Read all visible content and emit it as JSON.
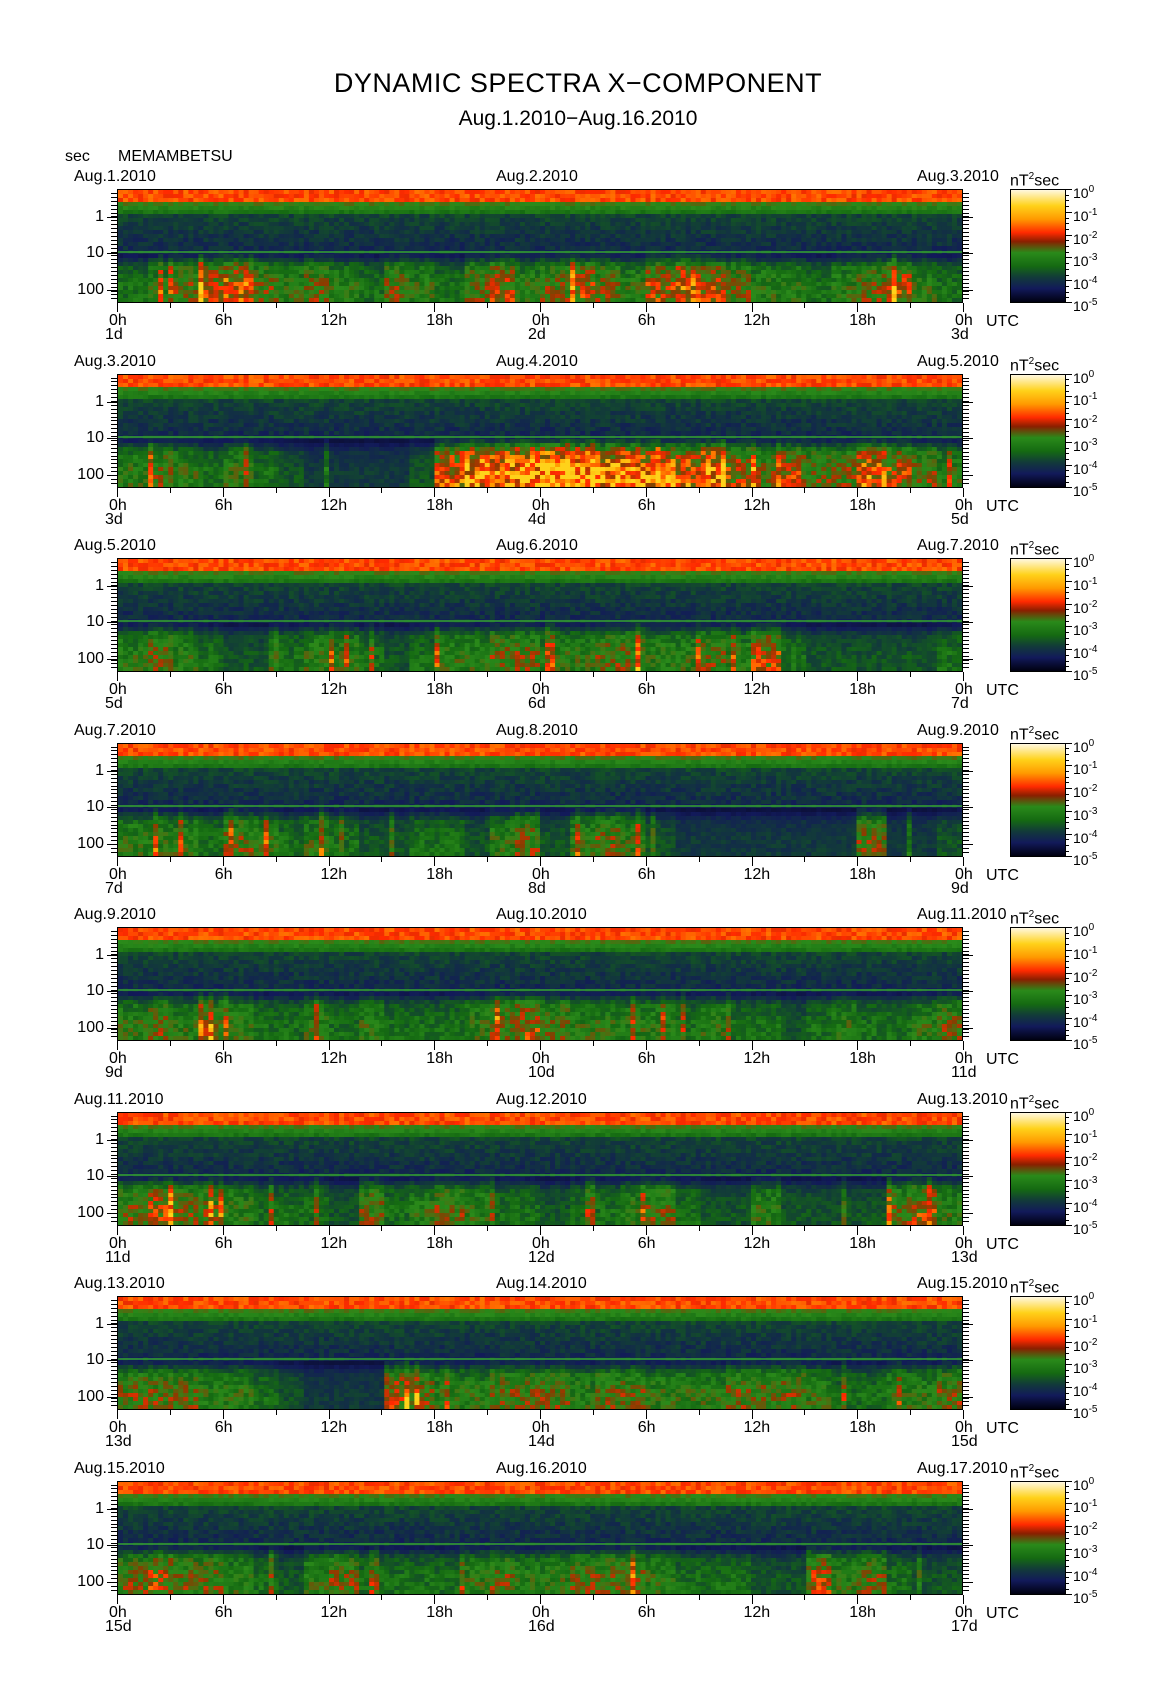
{
  "title": "DYNAMIC SPECTRA X−COMPONENT",
  "subtitle": "Aug.1.2010−Aug.16.2010",
  "y_unit": "sec",
  "station": "MEMAMBETSU",
  "colorbar_unit_prefix": "nT",
  "colorbar_unit_sup": "2",
  "colorbar_unit_suffix": "sec",
  "colorbar_labels": [
    "10",
    "10",
    "10",
    "10",
    "10",
    "10"
  ],
  "colorbar_exponents": [
    "0",
    "-1",
    "-2",
    "-3",
    "-4",
    "-5"
  ],
  "y_tick_labels": [
    "1",
    "10",
    "100"
  ],
  "x_tick_labels": [
    "0h",
    "6h",
    "12h",
    "18h",
    "0h",
    "6h",
    "12h",
    "18h",
    "0h"
  ],
  "x_axis_unit": "UTC",
  "colors": {
    "background": "#ffffff",
    "low_power": "#050510",
    "mid_power": "#1f7a18",
    "high_power": "#ff2a00",
    "peak_power": "#ffd21a"
  },
  "chart_data": {
    "type": "heatmap",
    "title": "DYNAMIC SPECTRA X−COMPONENT",
    "subtitle": "Aug.1.2010−Aug.16.2010",
    "ylabel": "sec",
    "y_scale": "log",
    "y_ticks": [
      1,
      10,
      100
    ],
    "y_direction": "period increases downward",
    "x_ticks_hours": [
      "0h",
      "6h",
      "12h",
      "18h",
      "0h",
      "6h",
      "12h",
      "18h",
      "0h"
    ],
    "colorbar": {
      "unit": "nT^2 sec",
      "scale": "log",
      "range": [
        1e-05,
        1.0
      ]
    },
    "panels": [
      {
        "left_date": "Aug.1.2010",
        "mid_date": "Aug.2.2010",
        "right_date": "Aug.3.2010",
        "day_labels": [
          "1d",
          "2d",
          "3d"
        ],
        "activity": [
          0.4,
          0.5,
          0.6,
          0.7,
          0.8,
          0.6,
          0.5,
          0.6,
          0.5,
          0.4,
          0.6,
          0.5,
          0.4,
          0.6,
          0.7,
          0.5,
          0.6,
          0.7,
          0.6,
          0.5,
          0.7,
          0.8,
          0.7,
          0.6,
          0.5,
          0.5,
          0.4,
          0.5,
          0.6,
          0.7,
          0.5,
          0.4
        ]
      },
      {
        "left_date": "Aug.3.2010",
        "mid_date": "Aug.4.2010",
        "right_date": "Aug.5.2010",
        "day_labels": [
          "3d",
          "4d",
          "5d"
        ],
        "activity": [
          0.5,
          0.6,
          0.5,
          0.4,
          0.5,
          0.4,
          0.3,
          0.2,
          0.2,
          0.2,
          0.2,
          0.3,
          0.8,
          0.9,
          0.9,
          0.95,
          1.0,
          0.95,
          0.9,
          0.9,
          0.85,
          0.8,
          0.9,
          0.7,
          0.6,
          0.7,
          0.6,
          0.6,
          0.8,
          0.7,
          0.6,
          0.5
        ]
      },
      {
        "left_date": "Aug.5.2010",
        "mid_date": "Aug.6.2010",
        "right_date": "Aug.7.2010",
        "day_labels": [
          "5d",
          "6d",
          "7d"
        ],
        "activity": [
          0.5,
          0.6,
          0.5,
          0.4,
          0.3,
          0.3,
          0.4,
          0.5,
          0.5,
          0.4,
          0.3,
          0.4,
          0.5,
          0.5,
          0.6,
          0.6,
          0.5,
          0.5,
          0.6,
          0.6,
          0.5,
          0.5,
          0.6,
          0.5,
          0.7,
          0.4,
          0.3,
          0.3,
          0.3,
          0.3,
          0.3,
          0.4
        ]
      },
      {
        "left_date": "Aug.7.2010",
        "mid_date": "Aug.8.2010",
        "right_date": "Aug.9.2010",
        "day_labels": [
          "7d",
          "8d",
          "9d"
        ],
        "activity": [
          0.5,
          0.5,
          0.5,
          0.4,
          0.6,
          0.5,
          0.4,
          0.5,
          0.4,
          0.3,
          0.3,
          0.4,
          0.4,
          0.3,
          0.5,
          0.6,
          0.3,
          0.5,
          0.6,
          0.5,
          0.3,
          0.2,
          0.2,
          0.2,
          0.2,
          0.2,
          0.2,
          0.2,
          0.6,
          0.2,
          0.2,
          0.3
        ]
      },
      {
        "left_date": "Aug.9.2010",
        "mid_date": "Aug.10.2010",
        "right_date": "Aug.11.2010",
        "day_labels": [
          "9d",
          "10d",
          "11d"
        ],
        "activity": [
          0.5,
          0.6,
          0.5,
          0.6,
          0.5,
          0.4,
          0.4,
          0.5,
          0.4,
          0.5,
          0.4,
          0.4,
          0.4,
          0.5,
          0.6,
          0.7,
          0.6,
          0.5,
          0.5,
          0.5,
          0.5,
          0.4,
          0.5,
          0.4,
          0.4,
          0.3,
          0.4,
          0.5,
          0.4,
          0.4,
          0.5,
          0.6
        ]
      },
      {
        "left_date": "Aug.11.2010",
        "mid_date": "Aug.12.2010",
        "right_date": "Aug.13.2010",
        "day_labels": [
          "11d",
          "12d",
          "13d"
        ],
        "activity": [
          0.6,
          0.7,
          0.6,
          0.6,
          0.5,
          0.4,
          0.4,
          0.4,
          0.3,
          0.6,
          0.4,
          0.5,
          0.6,
          0.5,
          0.4,
          0.4,
          0.3,
          0.4,
          0.4,
          0.5,
          0.6,
          0.4,
          0.3,
          0.3,
          0.5,
          0.3,
          0.3,
          0.3,
          0.3,
          0.6,
          0.7,
          0.5
        ]
      },
      {
        "left_date": "Aug.13.2010",
        "mid_date": "Aug.14.2010",
        "right_date": "Aug.15.2010",
        "day_labels": [
          "13d",
          "14d",
          "15d"
        ],
        "activity": [
          0.6,
          0.6,
          0.6,
          0.5,
          0.5,
          0.4,
          0.3,
          0.2,
          0.2,
          0.2,
          0.7,
          0.6,
          0.5,
          0.5,
          0.6,
          0.6,
          0.6,
          0.5,
          0.6,
          0.6,
          0.5,
          0.5,
          0.5,
          0.6,
          0.6,
          0.6,
          0.5,
          0.4,
          0.4,
          0.5,
          0.5,
          0.6
        ]
      },
      {
        "left_date": "Aug.15.2010",
        "mid_date": "Aug.16.2010",
        "right_date": "Aug.17.2010",
        "day_labels": [
          "15d",
          "16d",
          "17d"
        ],
        "activity": [
          0.6,
          0.7,
          0.6,
          0.6,
          0.5,
          0.4,
          0.3,
          0.5,
          0.6,
          0.4,
          0.4,
          0.4,
          0.4,
          0.5,
          0.6,
          0.5,
          0.5,
          0.6,
          0.6,
          0.6,
          0.5,
          0.4,
          0.4,
          0.4,
          0.3,
          0.3,
          0.7,
          0.5,
          0.6,
          0.4,
          0.3,
          0.3
        ]
      }
    ]
  }
}
